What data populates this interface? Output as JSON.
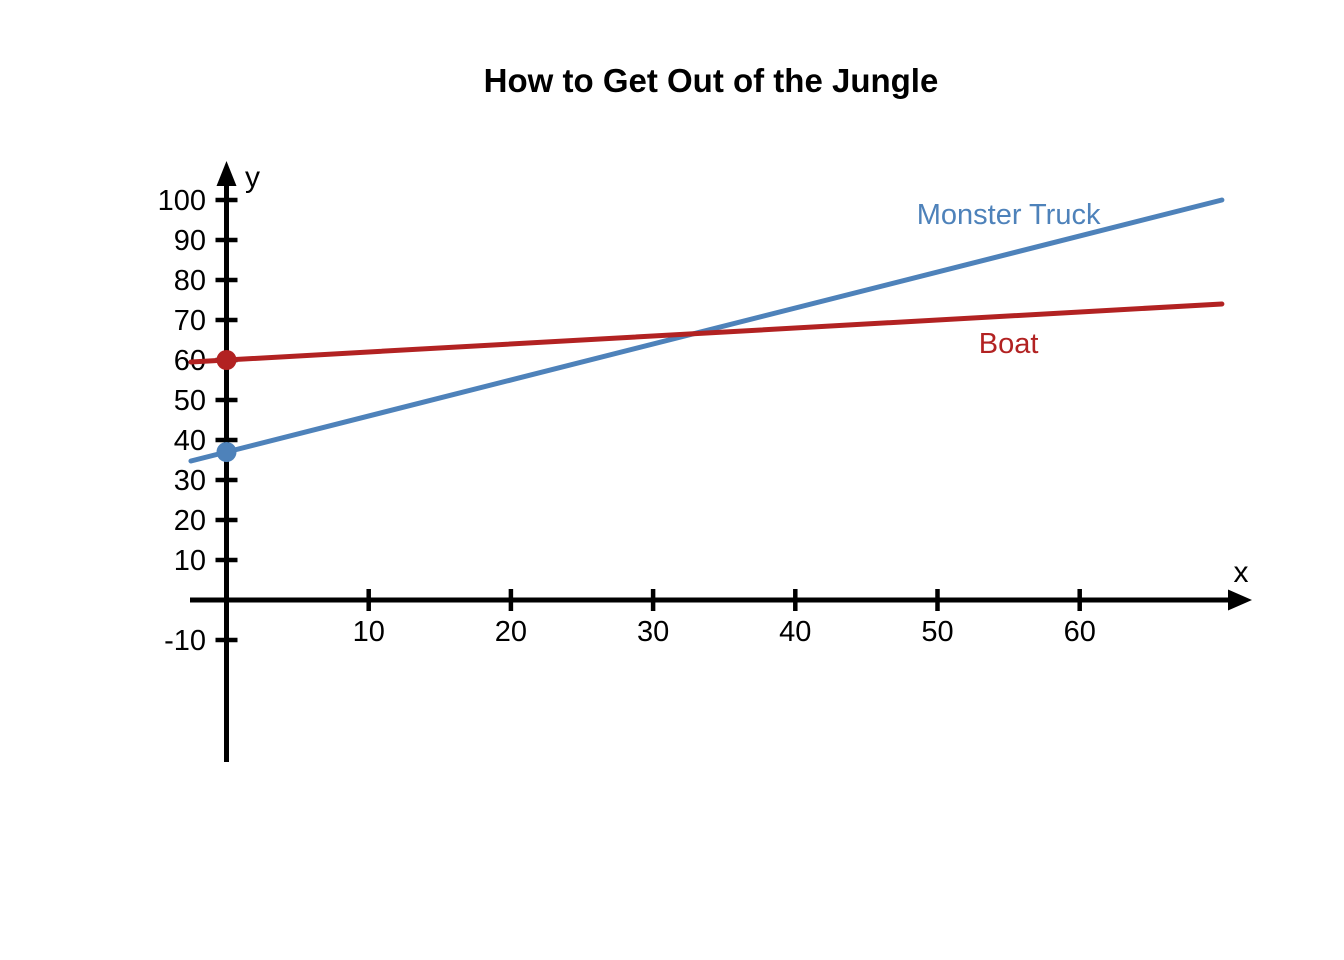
{
  "chart_data": {
    "type": "line",
    "title": "How to Get Out of the Jungle",
    "xlabel": "x",
    "ylabel": "y",
    "x_ticks": [
      10,
      20,
      30,
      40,
      50,
      60
    ],
    "y_ticks": [
      100,
      90,
      80,
      70,
      60,
      50,
      40,
      30,
      20,
      10,
      -10
    ],
    "xlim": [
      -2.5,
      72
    ],
    "ylim": [
      -40,
      110
    ],
    "grid": false,
    "legend_position": "inline-labels",
    "axis_color": "#000000",
    "series": [
      {
        "name": "Monster Truck",
        "color": "#4e82ba",
        "slope": 0.9,
        "intercept": 37,
        "x_range": [
          -2.5,
          70
        ],
        "endpoints": [
          [
            0,
            37
          ],
          [
            70,
            100
          ]
        ],
        "y_intercept_point": [
          0,
          37
        ],
        "label_pos": [
          55,
          96.5
        ]
      },
      {
        "name": "Boat",
        "color": "#b22222",
        "slope": 0.2,
        "intercept": 60,
        "x_range": [
          -2.5,
          70
        ],
        "endpoints": [
          [
            0,
            60
          ],
          [
            70,
            74
          ]
        ],
        "y_intercept_point": [
          0,
          60
        ],
        "label_pos": [
          55,
          64.2
        ]
      }
    ]
  }
}
